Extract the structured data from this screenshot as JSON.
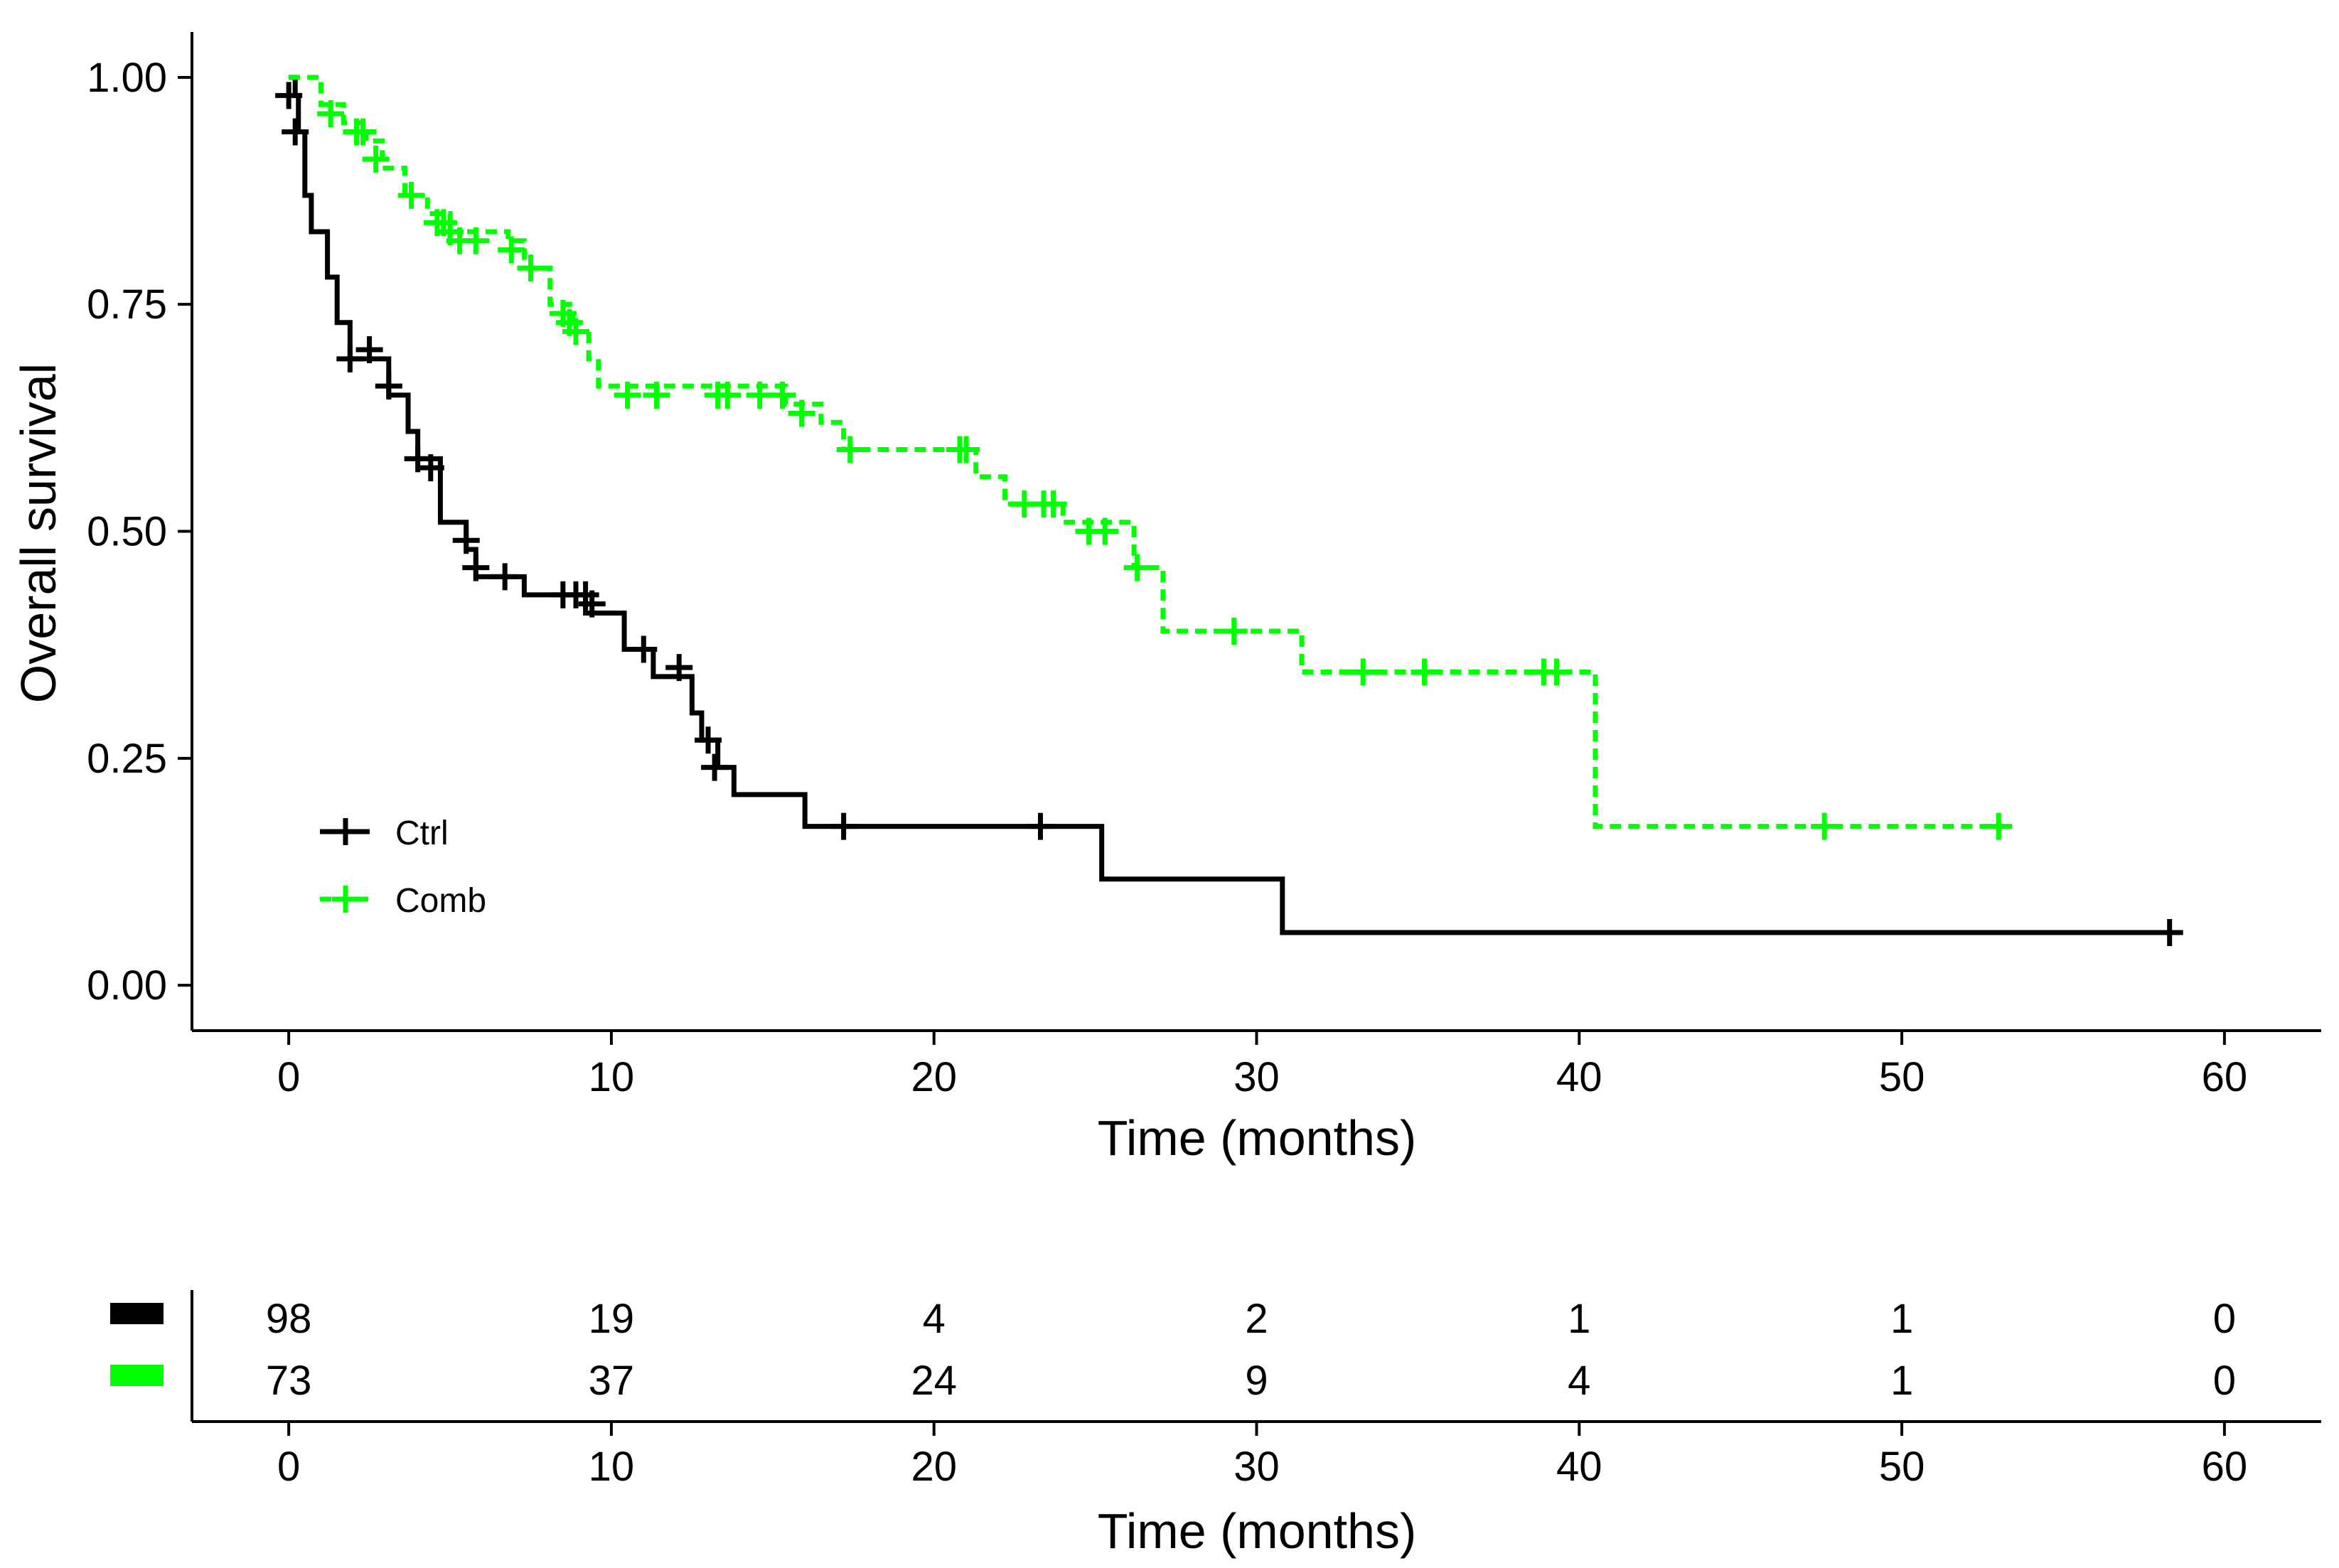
{
  "chart_data": {
    "type": "kaplan-meier",
    "ylabel": "Overall survival",
    "xlabel": "Time (months)",
    "xlim": [
      -3,
      63
    ],
    "ylim": [
      -0.05,
      1.05
    ],
    "x_ticks": [
      0,
      10,
      20,
      30,
      40,
      50,
      60
    ],
    "x_tick_labels": [
      "0",
      "10",
      "20",
      "30",
      "40",
      "50",
      "60"
    ],
    "y_ticks": [
      0,
      0.25,
      0.5,
      0.75,
      1
    ],
    "y_tick_labels": [
      "0.00",
      "0.25",
      "0.50",
      "0.75",
      "1.00"
    ],
    "legend_position": "bottom-left inside",
    "series": [
      {
        "name": "Ctrl",
        "color": "#000000",
        "line_style": "solid",
        "steps": [
          [
            0,
            1.0
          ],
          [
            0.2,
            0.98
          ],
          [
            0.3,
            0.94
          ],
          [
            0.5,
            0.87
          ],
          [
            0.7,
            0.83
          ],
          [
            1.2,
            0.78
          ],
          [
            1.5,
            0.73
          ],
          [
            1.9,
            0.69
          ],
          [
            2.5,
            0.69
          ],
          [
            3.1,
            0.65
          ],
          [
            3.7,
            0.61
          ],
          [
            4.0,
            0.58
          ],
          [
            4.7,
            0.51
          ],
          [
            5.5,
            0.48
          ],
          [
            5.8,
            0.45
          ],
          [
            7.3,
            0.43
          ],
          [
            9.2,
            0.41
          ],
          [
            10.0,
            0.41
          ],
          [
            10.4,
            0.37
          ],
          [
            11.3,
            0.34
          ],
          [
            12.5,
            0.3
          ],
          [
            12.8,
            0.27
          ],
          [
            13.3,
            0.24
          ],
          [
            13.8,
            0.21
          ],
          [
            16.0,
            0.175
          ],
          [
            25.2,
            0.117
          ],
          [
            30.8,
            0.058
          ],
          [
            58.5,
            0.058
          ]
        ],
        "censor": [
          [
            0,
            0.98
          ],
          [
            0.2,
            0.94
          ],
          [
            1.9,
            0.69
          ],
          [
            2.5,
            0.7
          ],
          [
            3.1,
            0.66
          ],
          [
            4.0,
            0.58
          ],
          [
            4.4,
            0.57
          ],
          [
            5.5,
            0.49
          ],
          [
            5.8,
            0.46
          ],
          [
            6.7,
            0.45
          ],
          [
            8.5,
            0.43
          ],
          [
            8.9,
            0.43
          ],
          [
            9.2,
            0.43
          ],
          [
            9.4,
            0.42
          ],
          [
            11.0,
            0.37
          ],
          [
            12.1,
            0.35
          ],
          [
            13.0,
            0.27
          ],
          [
            13.2,
            0.24
          ],
          [
            17.2,
            0.175
          ],
          [
            23.3,
            0.175
          ],
          [
            58.3,
            0.058
          ]
        ]
      },
      {
        "name": "Comb",
        "color": "#00ff00",
        "line_style": "dashed",
        "steps": [
          [
            0,
            1.0
          ],
          [
            1.0,
            0.97
          ],
          [
            1.7,
            0.95
          ],
          [
            2.4,
            0.93
          ],
          [
            2.9,
            0.9
          ],
          [
            3.6,
            0.87
          ],
          [
            4.3,
            0.85
          ],
          [
            5.0,
            0.83
          ],
          [
            6.8,
            0.82
          ],
          [
            7.3,
            0.79
          ],
          [
            8.1,
            0.75
          ],
          [
            8.8,
            0.72
          ],
          [
            9.3,
            0.69
          ],
          [
            9.6,
            0.66
          ],
          [
            15.4,
            0.64
          ],
          [
            16.5,
            0.62
          ],
          [
            17.2,
            0.59
          ],
          [
            21.3,
            0.56
          ],
          [
            22.2,
            0.53
          ],
          [
            24.0,
            0.51
          ],
          [
            26.2,
            0.46
          ],
          [
            27.1,
            0.39
          ],
          [
            31.4,
            0.345
          ],
          [
            40.5,
            0.175
          ],
          [
            53.0,
            0.175
          ]
        ],
        "censor": [
          [
            1.3,
            0.96
          ],
          [
            2.1,
            0.94
          ],
          [
            2.3,
            0.94
          ],
          [
            2.7,
            0.91
          ],
          [
            3.8,
            0.87
          ],
          [
            4.6,
            0.84
          ],
          [
            4.8,
            0.84
          ],
          [
            5.0,
            0.83
          ],
          [
            5.3,
            0.82
          ],
          [
            5.8,
            0.82
          ],
          [
            6.9,
            0.81
          ],
          [
            7.5,
            0.79
          ],
          [
            8.5,
            0.74
          ],
          [
            8.7,
            0.73
          ],
          [
            8.9,
            0.72
          ],
          [
            10.5,
            0.65
          ],
          [
            11.4,
            0.65
          ],
          [
            13.3,
            0.65
          ],
          [
            13.6,
            0.65
          ],
          [
            14.6,
            0.65
          ],
          [
            15.3,
            0.65
          ],
          [
            15.9,
            0.63
          ],
          [
            17.4,
            0.59
          ],
          [
            20.8,
            0.59
          ],
          [
            21.0,
            0.59
          ],
          [
            22.8,
            0.53
          ],
          [
            23.4,
            0.53
          ],
          [
            23.7,
            0.53
          ],
          [
            24.8,
            0.5
          ],
          [
            25.3,
            0.5
          ],
          [
            26.3,
            0.46
          ],
          [
            29.3,
            0.39
          ],
          [
            33.3,
            0.345
          ],
          [
            35.2,
            0.345
          ],
          [
            38.9,
            0.345
          ],
          [
            39.3,
            0.345
          ],
          [
            47.6,
            0.175
          ],
          [
            53.0,
            0.175
          ]
        ]
      }
    ],
    "risk_table": {
      "xlabel": "Time (months)",
      "times": [
        0,
        10,
        20,
        30,
        40,
        50,
        60
      ],
      "rows": [
        {
          "name": "Ctrl",
          "color": "#000000",
          "values": [
            "98",
            "19",
            "4",
            "2",
            "1",
            "1",
            "0"
          ]
        },
        {
          "name": "Comb",
          "color": "#00ff00",
          "values": [
            "73",
            "37",
            "24",
            "9",
            "4",
            "1",
            "0"
          ]
        }
      ]
    }
  }
}
